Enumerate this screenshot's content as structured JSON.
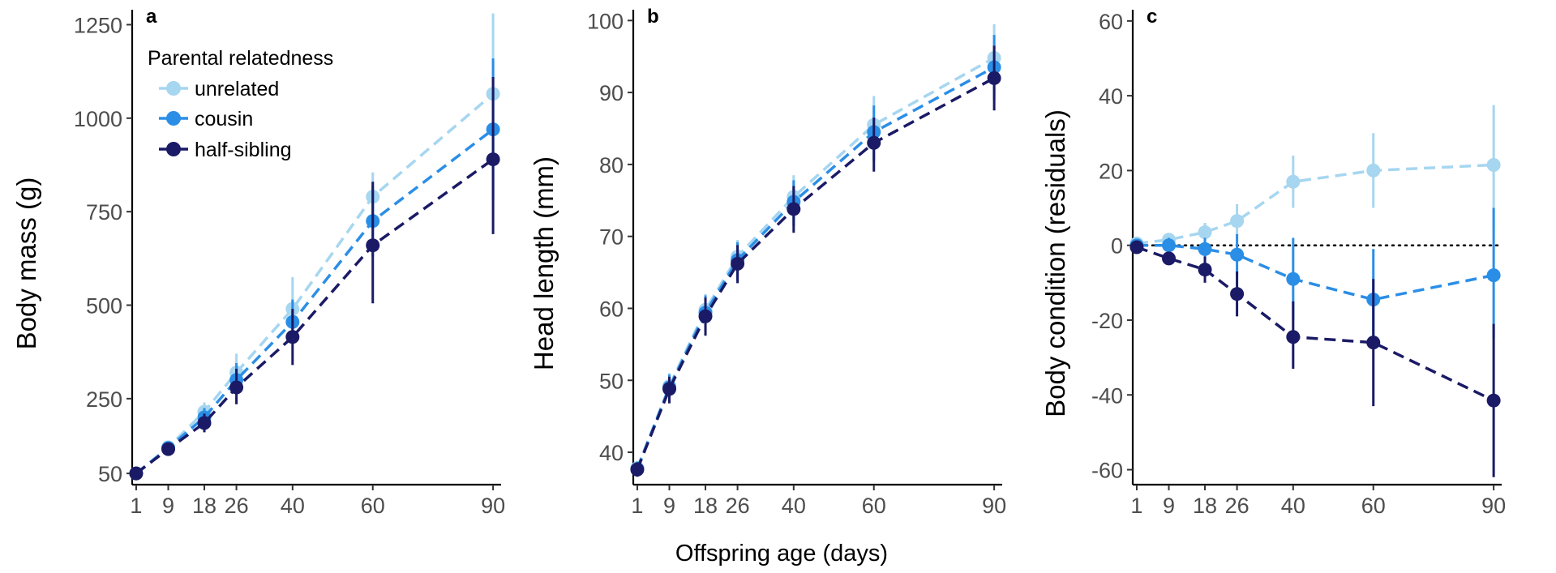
{
  "colors": {
    "unrelated": "#a6d6f0",
    "cousin": "#2b8ee6",
    "half_sibling": "#1a1a66"
  },
  "xlabel": "Offspring age (days)",
  "legend": {
    "title": "Parental relatedness",
    "entries": [
      "unrelated",
      "cousin",
      "half-sibling"
    ],
    "placement": "top-left of panel a"
  },
  "chart_data": [
    {
      "type": "line",
      "panel": "a",
      "ylabel": "Body mass (g)",
      "x": [
        1,
        9,
        18,
        26,
        40,
        60,
        90
      ],
      "x_ticks": [
        1,
        9,
        18,
        26,
        40,
        60,
        90
      ],
      "x_tick_labels": [
        "1",
        "9",
        "18",
        "26",
        "40",
        "60",
        "90"
      ],
      "xlim": [
        0,
        92
      ],
      "y_ticks": [
        50,
        250,
        500,
        750,
        1000,
        1250
      ],
      "y_tick_labels": [
        "50",
        "250",
        "500",
        "750",
        "1000",
        "1250"
      ],
      "ylim": [
        20,
        1290
      ],
      "reference_line": null,
      "series": [
        {
          "name": "unrelated",
          "values": [
            50,
            120,
            215,
            320,
            490,
            790,
            1065
          ],
          "err_low": [
            40,
            110,
            190,
            280,
            420,
            730,
            850
          ],
          "err_high": [
            60,
            135,
            240,
            370,
            575,
            855,
            1280
          ]
        },
        {
          "name": "cousin",
          "values": [
            50,
            118,
            200,
            300,
            455,
            725,
            970
          ],
          "err_low": [
            40,
            108,
            180,
            265,
            400,
            630,
            780
          ],
          "err_high": [
            60,
            130,
            225,
            345,
            515,
            820,
            1160
          ]
        },
        {
          "name": "half-sibling",
          "values": [
            50,
            115,
            185,
            280,
            415,
            660,
            890
          ],
          "err_low": [
            40,
            105,
            160,
            235,
            340,
            505,
            690
          ],
          "err_high": [
            60,
            125,
            210,
            330,
            490,
            830,
            1110
          ]
        }
      ]
    },
    {
      "type": "line",
      "panel": "b",
      "ylabel": "Head length (mm)",
      "x": [
        1,
        9,
        18,
        26,
        40,
        60,
        90
      ],
      "x_ticks": [
        1,
        9,
        18,
        26,
        40,
        60,
        90
      ],
      "x_tick_labels": [
        "1",
        "9",
        "18",
        "26",
        "40",
        "60",
        "90"
      ],
      "xlim": [
        0,
        92
      ],
      "y_ticks": [
        40,
        50,
        60,
        70,
        80,
        90,
        100
      ],
      "y_tick_labels": [
        "40",
        "50",
        "60",
        "70",
        "80",
        "90",
        "100"
      ],
      "ylim": [
        35.5,
        101.5
      ],
      "reference_line": null,
      "series": [
        {
          "name": "unrelated",
          "values": [
            37.8,
            49.2,
            59.8,
            67.2,
            75.5,
            85.5,
            94.8
          ],
          "err_low": [
            36.8,
            47.5,
            57.5,
            64.5,
            72.5,
            81.5,
            90.0
          ],
          "err_high": [
            38.8,
            51.0,
            62.0,
            69.5,
            78.5,
            89.5,
            99.5
          ]
        },
        {
          "name": "cousin",
          "values": [
            37.7,
            49.0,
            59.4,
            66.7,
            74.8,
            84.5,
            93.5
          ],
          "err_low": [
            36.7,
            47.2,
            57.0,
            64.0,
            71.5,
            80.5,
            89.0
          ],
          "err_high": [
            38.7,
            50.8,
            61.8,
            69.2,
            77.8,
            88.2,
            98.0
          ]
        },
        {
          "name": "half-sibling",
          "values": [
            37.6,
            48.8,
            58.9,
            66.2,
            73.8,
            83.0,
            92.0
          ],
          "err_low": [
            36.6,
            46.8,
            56.2,
            63.5,
            70.5,
            79.0,
            87.5
          ],
          "err_high": [
            38.6,
            50.5,
            61.5,
            68.8,
            77.0,
            86.5,
            96.5
          ]
        }
      ]
    },
    {
      "type": "line",
      "panel": "c",
      "ylabel": "Body condition (residuals)",
      "x": [
        1,
        9,
        18,
        26,
        40,
        60,
        90
      ],
      "x_ticks": [
        1,
        9,
        18,
        26,
        40,
        60,
        90
      ],
      "x_tick_labels": [
        "1",
        "9",
        "18",
        "26",
        "40",
        "60",
        "90"
      ],
      "xlim": [
        0,
        92
      ],
      "y_ticks": [
        -60,
        -40,
        -20,
        0,
        20,
        40,
        60
      ],
      "y_tick_labels": [
        "-60",
        "-40",
        "-20",
        "0",
        "20",
        "40",
        "60"
      ],
      "ylim": [
        -64,
        63
      ],
      "reference_line": 0,
      "series": [
        {
          "name": "unrelated",
          "values": [
            0.5,
            1.5,
            3.5,
            6.5,
            17,
            20,
            21.5
          ],
          "err_low": [
            -1,
            0,
            1,
            2,
            10,
            10,
            5
          ],
          "err_high": [
            2,
            3,
            6,
            11,
            24,
            30,
            37.5
          ]
        },
        {
          "name": "cousin",
          "values": [
            0,
            0,
            -1,
            -2.5,
            -9,
            -14.5,
            -8
          ],
          "err_low": [
            -1.5,
            -2,
            -4,
            -8,
            -20,
            -27,
            -25
          ],
          "err_high": [
            1.5,
            2,
            2,
            3,
            2,
            -1,
            10
          ]
        },
        {
          "name": "half-sibling",
          "values": [
            -0.5,
            -3.5,
            -6.5,
            -13,
            -24.5,
            -26,
            -41.5
          ],
          "err_low": [
            -2,
            -5,
            -10,
            -19,
            -33,
            -43,
            -62
          ],
          "err_high": [
            1,
            -2,
            -3,
            -7,
            -15,
            -9,
            -21
          ]
        }
      ]
    }
  ]
}
